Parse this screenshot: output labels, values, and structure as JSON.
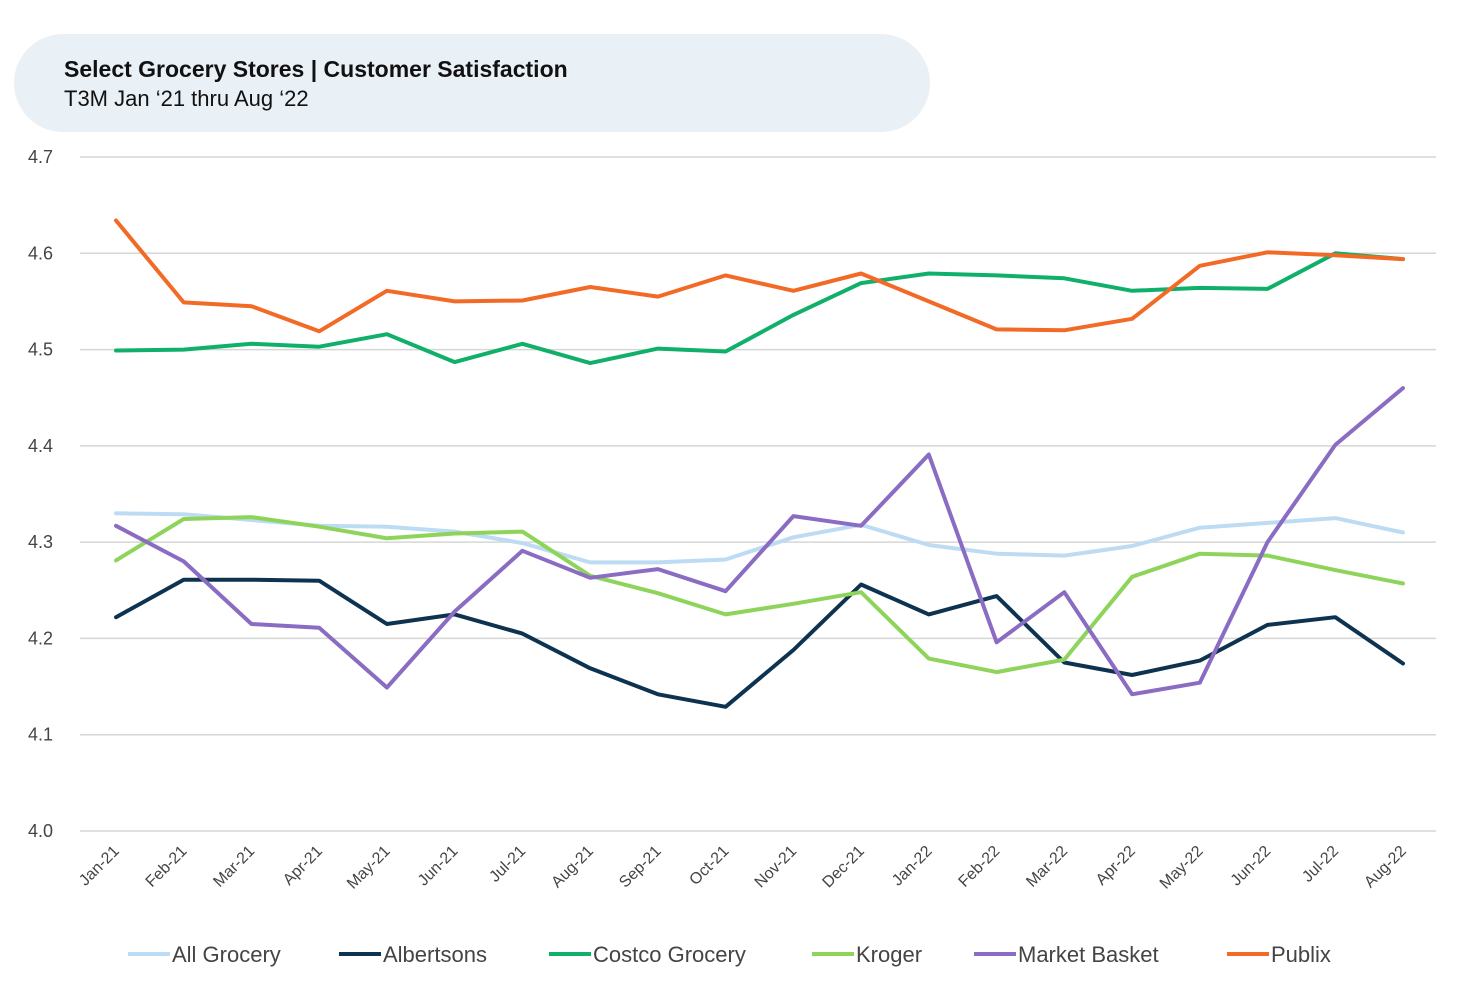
{
  "chart_data": {
    "type": "line",
    "title": "Select Grocery Stores | Customer Satisfaction",
    "subtitle": "T3M Jan ‘21 thru Aug ‘22",
    "xlabel": "",
    "ylabel": "",
    "ylim": [
      4.0,
      4.7
    ],
    "yticks": [
      "4.0",
      "4.1",
      "4.2",
      "4.3",
      "4.4",
      "4.5",
      "4.6",
      "4.7"
    ],
    "grid": "horizontal",
    "legend_position": "bottom",
    "categories": [
      "Jan-21",
      "Feb-21",
      "Mar-21",
      "Apr-21",
      "May-21",
      "Jun-21",
      "Jul-21",
      "Aug-21",
      "Sep-21",
      "Oct-21",
      "Nov-21",
      "Dec-21",
      "Jan-22",
      "Feb-22",
      "Mar-22",
      "Apr-22",
      "May-22",
      "Jun-22",
      "Jul-22",
      "Aug-22"
    ],
    "series": [
      {
        "name": "All Grocery",
        "color": "#bddcf4",
        "values": [
          4.33,
          4.329,
          4.323,
          4.317,
          4.316,
          4.311,
          4.299,
          4.279,
          4.279,
          4.282,
          4.305,
          4.318,
          4.297,
          4.288,
          4.286,
          4.296,
          4.315,
          4.32,
          4.325,
          4.31
        ]
      },
      {
        "name": "Albertsons",
        "color": "#0e3350",
        "values": [
          4.222,
          4.261,
          4.261,
          4.26,
          4.215,
          4.225,
          4.205,
          4.169,
          4.142,
          4.129,
          4.188,
          4.256,
          4.225,
          4.244,
          4.175,
          4.162,
          4.177,
          4.214,
          4.222,
          4.174
        ]
      },
      {
        "name": "Costco Grocery",
        "color": "#10b06a",
        "values": [
          4.499,
          4.5,
          4.506,
          4.503,
          4.516,
          4.487,
          4.506,
          4.486,
          4.501,
          4.498,
          4.536,
          4.569,
          4.579,
          4.577,
          4.574,
          4.561,
          4.564,
          4.563,
          4.6,
          4.594
        ]
      },
      {
        "name": "Kroger",
        "color": "#8ed45a",
        "values": [
          4.281,
          4.324,
          4.326,
          4.316,
          4.304,
          4.309,
          4.311,
          4.265,
          4.247,
          4.225,
          4.236,
          4.248,
          4.179,
          4.165,
          4.178,
          4.264,
          4.288,
          4.286,
          4.271,
          4.257
        ]
      },
      {
        "name": "Market Basket",
        "color": "#8a6cc2",
        "values": [
          4.317,
          4.28,
          4.215,
          4.211,
          4.149,
          4.228,
          4.291,
          4.263,
          4.272,
          4.249,
          4.327,
          4.317,
          4.391,
          4.196,
          4.248,
          4.142,
          4.154,
          4.3,
          4.401,
          4.46
        ]
      },
      {
        "name": "Publix",
        "color": "#f26a25",
        "values": [
          4.634,
          4.549,
          4.545,
          4.519,
          4.561,
          4.55,
          4.551,
          4.565,
          4.555,
          4.577,
          4.561,
          4.579,
          4.55,
          4.521,
          4.52,
          4.532,
          4.587,
          4.601,
          4.598,
          4.594
        ]
      }
    ]
  }
}
